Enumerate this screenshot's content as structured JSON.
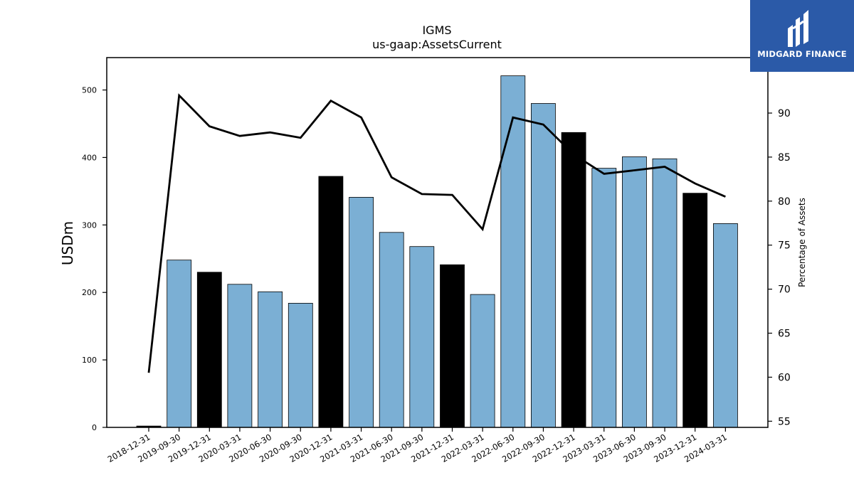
{
  "brand": {
    "name": "MIDGARD FINANCE",
    "color": "#2b5aa8"
  },
  "chart_data": {
    "type": "bar",
    "title": "IGMS",
    "subtitle": "us-gaap:AssetsCurrent",
    "ylabel": "USDm",
    "y2label": "Percentage of Assets",
    "xlabel": "",
    "ylim": [
      0,
      548
    ],
    "y2lim": [
      54.3,
      96.3
    ],
    "yticks": [
      0,
      100,
      200,
      300,
      400,
      500
    ],
    "y2ticks": [
      55,
      60,
      65,
      70,
      75,
      80,
      85,
      90
    ],
    "categories": [
      "2018-12-31",
      "2019-09-30",
      "2019-12-31",
      "2020-03-31",
      "2020-06-30",
      "2020-09-30",
      "2020-12-31",
      "2021-03-31",
      "2021-06-30",
      "2021-09-30",
      "2021-12-31",
      "2022-03-31",
      "2022-06-30",
      "2022-09-30",
      "2022-12-31",
      "2023-03-31",
      "2023-06-30",
      "2023-09-30",
      "2023-12-31",
      "2024-03-31"
    ],
    "series": [
      {
        "axis": "left",
        "kind": "bar",
        "values": [
          2,
          248,
          230,
          212,
          201,
          184,
          372,
          341,
          289,
          268,
          241,
          197,
          521,
          480,
          437,
          384,
          401,
          398,
          347,
          302
        ],
        "colors": [
          "#000000",
          "#7bafd4",
          "#000000",
          "#7bafd4",
          "#7bafd4",
          "#7bafd4",
          "#000000",
          "#7bafd4",
          "#7bafd4",
          "#7bafd4",
          "#000000",
          "#7bafd4",
          "#7bafd4",
          "#7bafd4",
          "#000000",
          "#7bafd4",
          "#7bafd4",
          "#7bafd4",
          "#000000",
          "#7bafd4"
        ]
      },
      {
        "axis": "right",
        "kind": "line",
        "color": "#000000",
        "values": [
          60.5,
          92.0,
          88.5,
          87.4,
          87.8,
          87.2,
          91.4,
          89.5,
          82.7,
          80.8,
          80.7,
          76.8,
          89.5,
          88.7,
          85.3,
          83.1,
          83.5,
          83.9,
          82.0,
          80.5
        ]
      }
    ],
    "grid": false,
    "legend": "none"
  }
}
